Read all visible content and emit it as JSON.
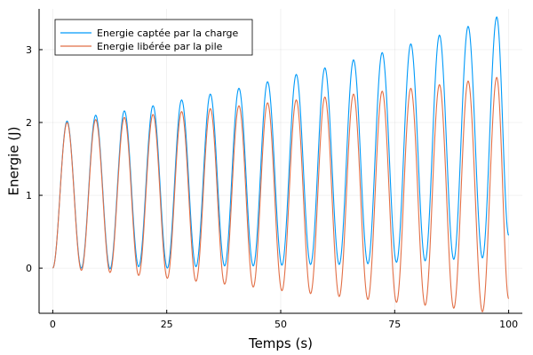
{
  "chart_data": {
    "type": "line",
    "title": "",
    "xlabel": "Temps (s)",
    "ylabel": "Energie (J)",
    "xlim": [
      -3,
      103
    ],
    "ylim": [
      -0.62,
      3.56
    ],
    "xticks": [
      0,
      25,
      50,
      75,
      100
    ],
    "yticks": [
      0,
      1,
      2,
      3
    ],
    "grid": true,
    "legend": "top-left",
    "series": [
      {
        "name": "Energie captée par la charge",
        "color": "#009af9",
        "x": [
          0,
          3.14,
          6.28,
          9.42,
          12.57,
          15.71,
          18.85,
          21.99,
          25.13,
          28.27,
          31.42,
          34.56,
          37.7,
          40.84,
          43.98,
          47.12,
          50.27,
          53.41,
          56.55,
          59.69,
          62.83,
          65.97,
          69.12,
          72.26,
          75.4,
          78.54,
          81.68,
          84.82,
          87.96,
          91.11,
          94.25,
          97.39,
          100
        ],
        "y": [
          0,
          2.02,
          0,
          2.1,
          -0.01,
          2.16,
          0.02,
          2.23,
          0,
          2.31,
          0.02,
          2.39,
          0.03,
          2.47,
          0.03,
          2.56,
          0.04,
          2.66,
          0.05,
          2.75,
          0.05,
          2.86,
          0.06,
          2.96,
          0.08,
          3.08,
          0.1,
          3.2,
          0.12,
          3.32,
          0.14,
          3.45,
          0.45
        ]
      },
      {
        "name": "Energie libérée par la pile",
        "color": "#e26f46",
        "x": [
          0,
          3.14,
          6.28,
          9.42,
          12.57,
          15.71,
          18.85,
          21.99,
          25.13,
          28.27,
          31.42,
          34.56,
          37.7,
          40.84,
          43.98,
          47.12,
          50.27,
          53.41,
          56.55,
          59.69,
          62.83,
          65.97,
          69.12,
          72.26,
          75.4,
          78.54,
          81.68,
          84.82,
          87.96,
          91.11,
          94.25,
          97.39,
          100
        ],
        "y": [
          0,
          2.0,
          -0.03,
          2.04,
          -0.06,
          2.07,
          -0.1,
          2.11,
          -0.14,
          2.15,
          -0.18,
          2.19,
          -0.22,
          2.23,
          -0.26,
          2.27,
          -0.31,
          2.31,
          -0.35,
          2.35,
          -0.39,
          2.39,
          -0.43,
          2.43,
          -0.47,
          2.47,
          -0.51,
          2.52,
          -0.55,
          2.57,
          -0.6,
          2.62,
          -0.42
        ]
      }
    ]
  }
}
